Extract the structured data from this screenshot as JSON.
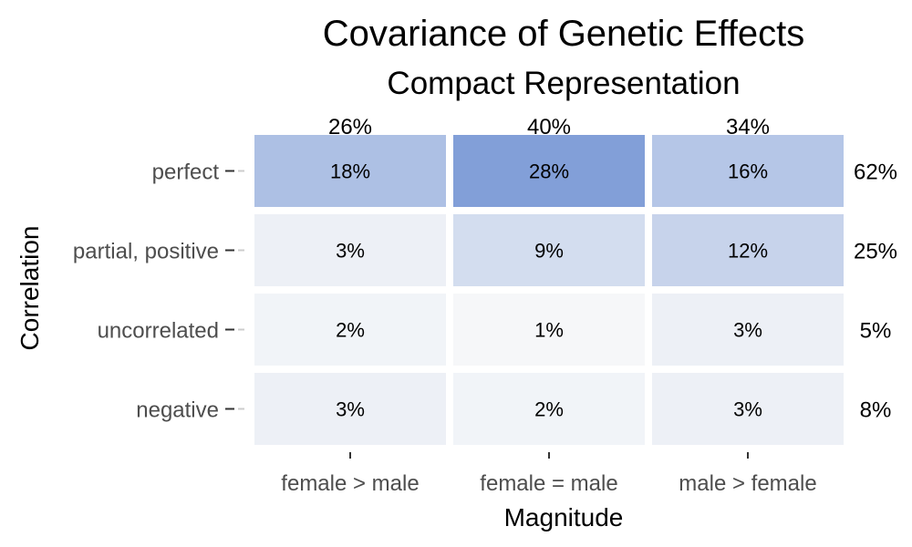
{
  "chart_data": {
    "type": "heatmap",
    "title": "Covariance of Genetic Effects",
    "subtitle": "Compact Representation",
    "xlabel": "Magnitude",
    "ylabel": "Correlation",
    "x_categories": [
      "female > male",
      "female = male",
      "male > female"
    ],
    "y_categories": [
      "perfect",
      "partial, positive",
      "uncorrelated",
      "negative"
    ],
    "values": [
      [
        18,
        28,
        16
      ],
      [
        3,
        9,
        12
      ],
      [
        2,
        1,
        3
      ],
      [
        3,
        2,
        3
      ]
    ],
    "cell_labels": [
      [
        "18%",
        "28%",
        "16%"
      ],
      [
        "3%",
        "9%",
        "12%"
      ],
      [
        "2%",
        "1%",
        "3%"
      ],
      [
        "3%",
        "2%",
        "3%"
      ]
    ],
    "column_totals": [
      "26%",
      "40%",
      "34%"
    ],
    "row_totals": [
      "62%",
      "25%",
      "5%",
      "8%"
    ],
    "color_low": "#fafafa",
    "color_high": "#829fd8",
    "value_range": [
      0,
      28
    ],
    "grid": false,
    "legend": "none"
  }
}
